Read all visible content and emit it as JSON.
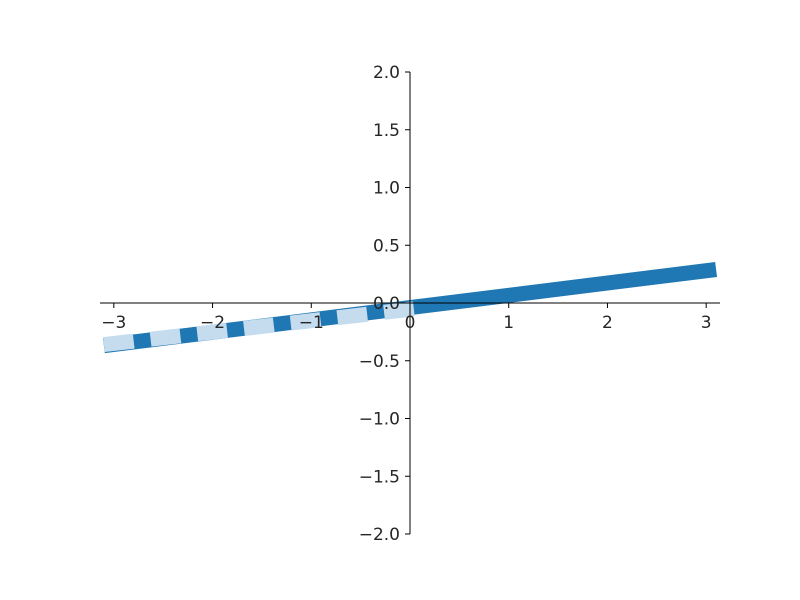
{
  "chart_data": {
    "type": "line",
    "title": "",
    "xlabel": "",
    "ylabel": "",
    "xlim": [
      -3.14,
      3.14
    ],
    "ylim": [
      -2.0,
      2.0
    ],
    "grid": false,
    "spines": "centered",
    "x_ticks": [
      -3,
      -2,
      -1,
      0,
      1,
      2,
      3
    ],
    "x_tick_labels": [
      "−3",
      "−2",
      "−1",
      "0",
      "1",
      "2",
      "3"
    ],
    "y_ticks": [
      2.0,
      1.5,
      1.0,
      0.5,
      0.0,
      -0.5,
      -1.0,
      -1.5,
      -2.0
    ],
    "y_tick_labels": [
      "2.0",
      "1.5",
      "1.0",
      "0.5",
      "0.0",
      "−0.5",
      "−1.0",
      "−1.5",
      "−2.0"
    ],
    "series": [
      {
        "style": "solid thick",
        "color": "#1f77b4",
        "x": [
          -3.1,
          3.1
        ],
        "y": [
          -0.37,
          0.29
        ]
      },
      {
        "style": "dashed thick",
        "color": "#c4dcee",
        "x": [
          -3.1,
          0.15
        ],
        "y": [
          -0.36,
          -0.04
        ]
      }
    ]
  }
}
